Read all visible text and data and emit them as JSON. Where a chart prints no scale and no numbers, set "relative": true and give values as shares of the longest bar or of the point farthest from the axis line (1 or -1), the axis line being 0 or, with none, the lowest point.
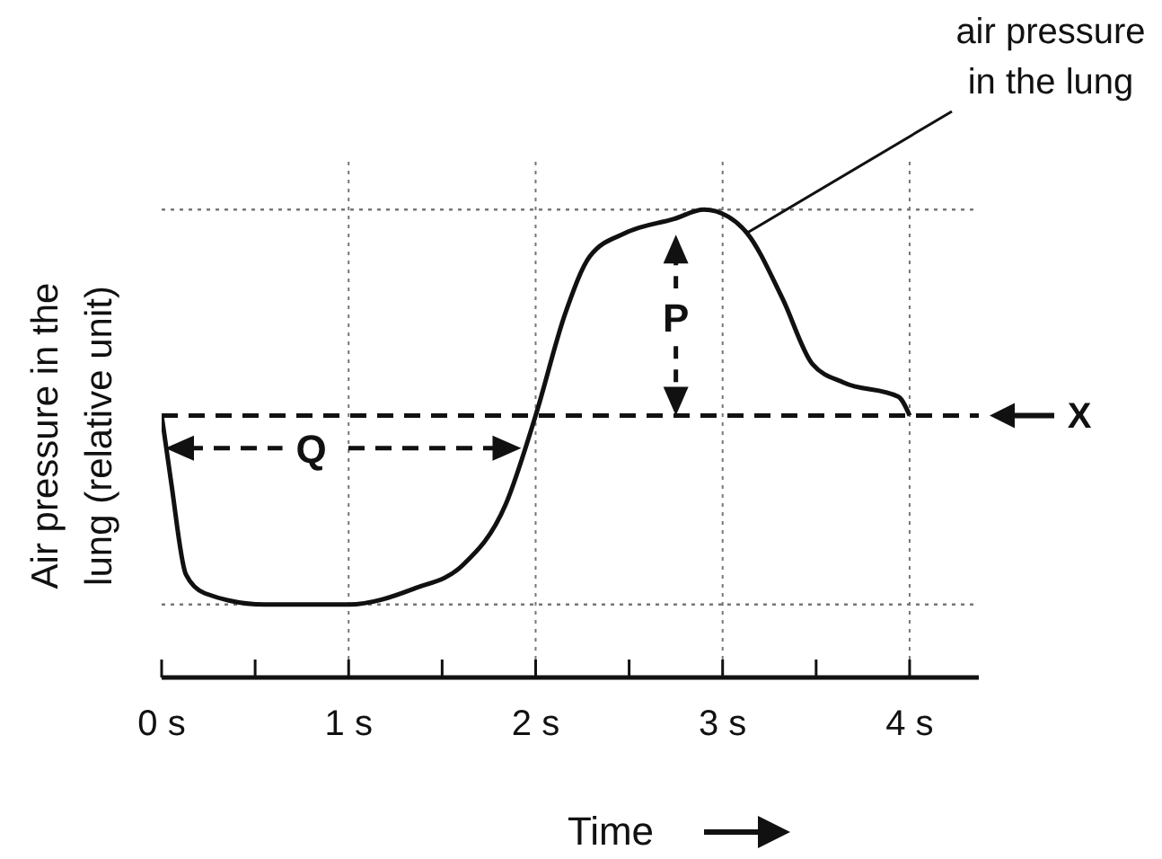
{
  "chart_data": {
    "type": "line",
    "relative": true,
    "xlabel": "Time",
    "ylabel": "Air pressure in the lung (relative unit)",
    "x": [
      0,
      0.05,
      0.13,
      0.23,
      0.55,
      1.0,
      1.35,
      1.61,
      1.84,
      2.0,
      2.16,
      2.29,
      2.48,
      2.74,
      2.9,
      3.03,
      3.13,
      3.32,
      3.48,
      3.65,
      3.94,
      4.0
    ],
    "series": [
      {
        "name": "air pressure in the lung",
        "color": "#111111",
        "values": [
          0.56,
          0.42,
          0.22,
          0.18,
          0.156,
          0.156,
          0.19,
          0.24,
          0.37,
          0.56,
          0.78,
          0.9,
          0.95,
          0.98,
          1.0,
          0.985,
          0.95,
          0.81,
          0.67,
          0.63,
          0.6,
          0.56
        ]
      }
    ],
    "xlim": [
      0,
      4.37
    ],
    "xticks": [
      {
        "value": 0,
        "label": "0 s"
      },
      {
        "value": 0.5,
        "label": null
      },
      {
        "value": 1,
        "label": "1 s"
      },
      {
        "value": 1.5,
        "label": null
      },
      {
        "value": 2,
        "label": "2 s"
      },
      {
        "value": 2.5,
        "label": null
      },
      {
        "value": 3,
        "label": "3 s"
      },
      {
        "value": 3.5,
        "label": null
      },
      {
        "value": 4,
        "label": "4 s"
      }
    ],
    "grid": "x",
    "marker": "none",
    "line_style": "solid",
    "ref_lines": [
      {
        "axis": "y",
        "value": 0.56,
        "label": "X",
        "line_style": "dashed"
      },
      {
        "axis": "y",
        "value": 1.0,
        "label": null,
        "line_style": "dotted"
      },
      {
        "axis": "y",
        "value": 0.156,
        "label": null,
        "line_style": "dotted"
      }
    ],
    "annotations": [
      {
        "text": "P",
        "x": 2.75,
        "y": 0.77
      },
      {
        "text": "Q",
        "x": 0.8,
        "y": 0.49
      }
    ]
  }
}
